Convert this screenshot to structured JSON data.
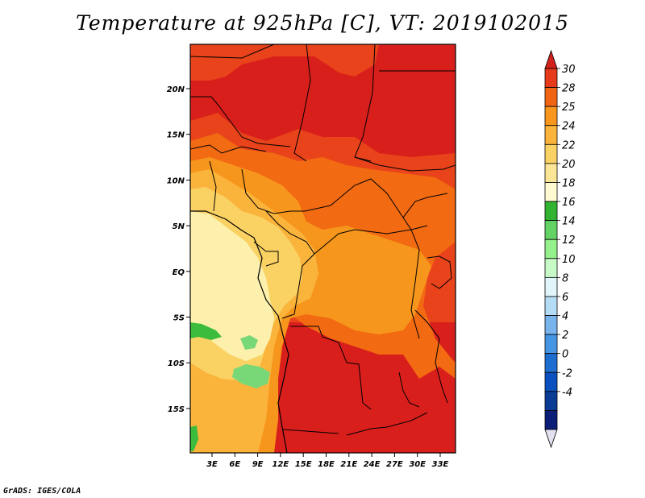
{
  "title": "Temperature at 925hPa [C], VT: 2019102015",
  "footer": "GrADS: IGES/COLA",
  "axes": {
    "lon_ticks": [
      "3E",
      "6E",
      "9E",
      "12E",
      "15E",
      "18E",
      "21E",
      "24E",
      "27E",
      "30E",
      "33E"
    ],
    "lat_ticks": [
      "20N",
      "15N",
      "10N",
      "5N",
      "EQ",
      "5S",
      "10S",
      "15S"
    ]
  },
  "colorbar": {
    "labels": [
      "30",
      "28",
      "25",
      "24",
      "22",
      "20",
      "18",
      "16",
      "14",
      "12",
      "10",
      "8",
      "6",
      "4",
      "2",
      "0",
      "-2",
      "-4"
    ],
    "colors": [
      "#d2221c",
      "#e63a1a",
      "#f06414",
      "#f8961e",
      "#fab43c",
      "#fad264",
      "#fae696",
      "#fffad2",
      "#32b432",
      "#64d264",
      "#96f08c",
      "#c8fac8",
      "#e1f5fa",
      "#b4dcf5",
      "#78b4eb",
      "#4696e6",
      "#1e6ed2",
      "#0a50be",
      "#0a3c96",
      "#0a1e78",
      "#e1e1f0"
    ]
  },
  "map": {
    "region": "Central Africa",
    "lon_range": [
      0,
      35
    ],
    "lat_range": [
      -19,
      24
    ],
    "colors": {
      "hot": "#d81f1c",
      "warm": "#e8431a",
      "orange": "#f26a12",
      "amber": "#f7961c",
      "light_orange": "#fab43c",
      "yellow": "#fad264",
      "pale": "#fcf0ac",
      "green": "#3cbc3c",
      "light_green": "#78d878",
      "border": "#000000"
    }
  }
}
